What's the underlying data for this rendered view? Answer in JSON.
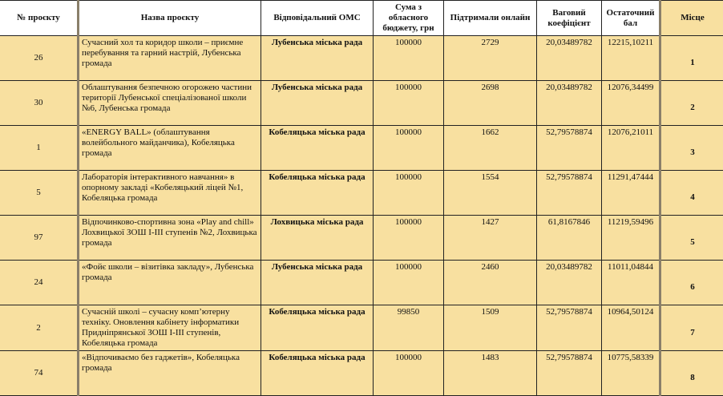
{
  "headers": [
    "№ проєкту",
    "Назва проєкту",
    "Відповідальний ОМС",
    "Сума з обласного бюджету, грн",
    "Підтримали онлайн",
    "Ваговий коефіцієнт",
    "Остаточний бал",
    "Місце"
  ],
  "rows": [
    {
      "id": "26",
      "name": "Сучасний хол та коридор школи – приємне перебування та гарний настрій, Лубенська громада",
      "oms": "Лубенська  міська рада",
      "sum": "100000",
      "online": "2729",
      "coef": "20,03489782",
      "score": "12215,10211",
      "place": "1"
    },
    {
      "id": "30",
      "name": "Облаштування безпечною огорожею частини території Лубенської спеціалізованої школи №6, Лубенська громада",
      "oms": "Лубенська міська рада",
      "sum": "100000",
      "online": "2698",
      "coef": "20,03489782",
      "score": "12076,34499",
      "place": "2"
    },
    {
      "id": "1",
      "name": "«ENERGY BALL» (облаштування волейбольного майданчика), Кобеляцька громада",
      "oms": "Кобеляцька міська рада",
      "sum": "100000",
      "online": "1662",
      "coef": "52,79578874",
      "score": "12076,21011",
      "place": "3"
    },
    {
      "id": "5",
      "name": "Лабораторія інтерактивного навчання» в опорному закладі «Кобеляцький ліцей №1, Кобеляцька громада",
      "oms": "Кобеляцька міська рада",
      "sum": "100000",
      "online": "1554",
      "coef": "52,79578874",
      "score": "11291,47444",
      "place": "4"
    },
    {
      "id": "97",
      "name": "Відпочинково-спортивна зона «Play and chill» Лохвицької ЗОШ І-ІІІ ступенів №2, Лохвицька громада",
      "oms": "Лохвицька міська рада",
      "sum": "100000",
      "online": "1427",
      "coef": "61,8167846",
      "score": "11219,59496",
      "place": "5"
    },
    {
      "id": "24",
      "name": "«Фойє школи – візитівка закладу», Лубенська громада",
      "oms": "Лубенська міська рада",
      "sum": "100000",
      "online": "2460",
      "coef": "20,03489782",
      "score": "11011,04844",
      "place": "6"
    },
    {
      "id": "2",
      "name": "Сучасній школі – сучасну комп’ютерну техніку. Оновлення кабінету інформатики Придніпрянської ЗОШ І-ІІІ ступенів, Кобеляцька громада",
      "oms": "Кобеляцька міська рада",
      "sum": "99850",
      "online": "1509",
      "coef": "52,79578874",
      "score": "10964,50124",
      "place": "7"
    },
    {
      "id": "74",
      "name": "«Відпочиваємо без гаджетів», Кобеляцька громада",
      "oms": "Кобеляцька міська рада",
      "sum": "100000",
      "online": "1483",
      "coef": "52,79578874",
      "score": "10775,58339",
      "place": "8"
    }
  ]
}
